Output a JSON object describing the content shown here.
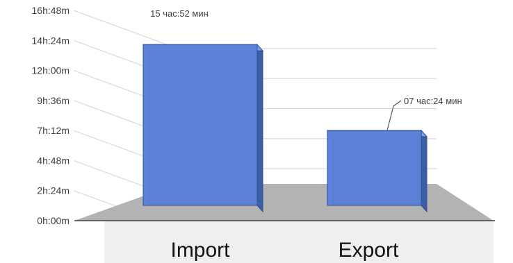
{
  "chart_data": {
    "type": "bar",
    "title": "",
    "xlabel": "",
    "ylabel": "",
    "categories": [
      "Import",
      "Export"
    ],
    "values_minutes": [
      952,
      444
    ],
    "data_labels": [
      "15 час:52 мин",
      "07 час:24 мин"
    ],
    "y_ticks": [
      "0h:00m",
      "2h:24m",
      "4h:48m",
      "7h:12m",
      "9h:36m",
      "12h:00m",
      "14h:24m",
      "16h:48m"
    ],
    "y_tick_minutes": [
      0,
      144,
      288,
      432,
      576,
      720,
      864,
      1008
    ],
    "ylim_minutes": [
      0,
      1008
    ],
    "grid": true,
    "legend": "none",
    "style": "3d-clustered-column",
    "colors": {
      "bar_front": "#5b82d6",
      "bar_top": "#7f9fe8",
      "bar_side": "#3b5fa3",
      "bar_edge": "#2e4f9a",
      "floor": "#b3b3b3",
      "grid": "#d9d9d9",
      "category_band": "#efefef",
      "axis": "#404040"
    }
  }
}
